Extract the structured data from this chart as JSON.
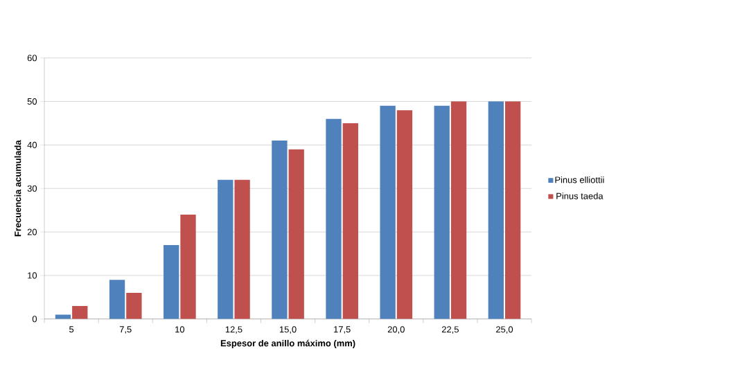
{
  "chart_data": {
    "type": "bar",
    "xlabel": "Espesor de anillo máximo (mm)",
    "ylabel": "Frecuencia acumulada",
    "categories": [
      "5",
      "7,5",
      "10",
      "12,5",
      "15,0",
      "17,5",
      "20,0",
      "22,5",
      "25,0"
    ],
    "series": [
      {
        "name": "Pinus elliottii",
        "color": "#4f81bd",
        "values": [
          1,
          9,
          17,
          32,
          41,
          46,
          49,
          49,
          50
        ]
      },
      {
        "name": "Pinus taeda",
        "color": "#c0504d",
        "values": [
          3,
          6,
          24,
          32,
          39,
          45,
          48,
          50,
          50
        ]
      }
    ],
    "ylim": [
      0,
      60
    ],
    "yticks": [
      0,
      10,
      20,
      30,
      40,
      50,
      60
    ],
    "grid": "y",
    "legend": "right"
  }
}
